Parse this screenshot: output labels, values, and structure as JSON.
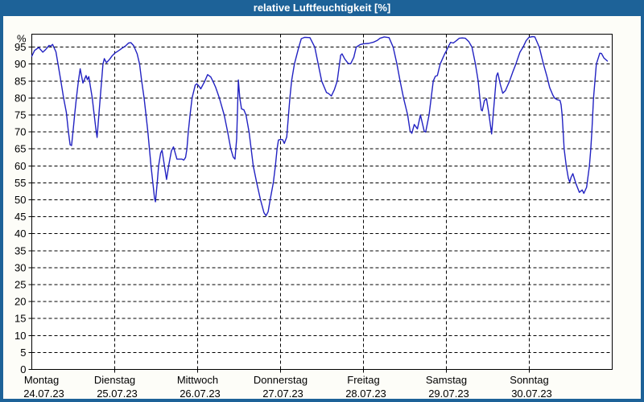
{
  "window": {
    "title": "relative Luftfeuchtigkeit [%]"
  },
  "chart_data": {
    "type": "line",
    "title": "relative Luftfeuchtigkeit [%]",
    "unit_label": "%",
    "grid": "dashed",
    "legend": "none",
    "line_color": "#2222c2",
    "plot_bg": "#ffffff",
    "ylim": [
      0,
      99
    ],
    "x_range_hours": [
      0,
      168
    ],
    "y_ticks": [
      0,
      5,
      10,
      15,
      20,
      25,
      30,
      35,
      40,
      45,
      50,
      55,
      60,
      65,
      70,
      75,
      80,
      85,
      90,
      95
    ],
    "x_days": [
      {
        "name": "Montag",
        "date": "24.07.23"
      },
      {
        "name": "Dienstag",
        "date": "25.07.23"
      },
      {
        "name": "Mittwoch",
        "date": "26.07.23"
      },
      {
        "name": "Donnerstag",
        "date": "27.07.23"
      },
      {
        "name": "Freitag",
        "date": "28.07.23"
      },
      {
        "name": "Samstag",
        "date": "29.07.23"
      },
      {
        "name": "Sonntag",
        "date": "30.07.23"
      }
    ],
    "series": [
      {
        "name": "relative Luftfeuchtigkeit [%]",
        "x_unit": "hours since 24.07.23 00:00",
        "points": [
          [
            0,
            92.3
          ],
          [
            0.8,
            94
          ],
          [
            2,
            94.9
          ],
          [
            3.2,
            93.5
          ],
          [
            4,
            94.3
          ],
          [
            5,
            95.5
          ],
          [
            5.5,
            95.3
          ],
          [
            6,
            95.8
          ],
          [
            7,
            93.6
          ],
          [
            7.6,
            90
          ],
          [
            8.4,
            85
          ],
          [
            9.2,
            80
          ],
          [
            10,
            75.8
          ],
          [
            10.6,
            70
          ],
          [
            11.1,
            66.2
          ],
          [
            11.5,
            66
          ],
          [
            12,
            70.8
          ],
          [
            12.4,
            75
          ],
          [
            12.9,
            80
          ],
          [
            13.5,
            85
          ],
          [
            14,
            88.6
          ],
          [
            14.8,
            84.4
          ],
          [
            15.7,
            86.6
          ],
          [
            16.1,
            85.4
          ],
          [
            16.5,
            86.3
          ],
          [
            17.5,
            80
          ],
          [
            18,
            75.5
          ],
          [
            18.6,
            70.5
          ],
          [
            18.9,
            68.4
          ],
          [
            19.4,
            75
          ],
          [
            20.2,
            85
          ],
          [
            20.6,
            90
          ],
          [
            21,
            91.6
          ],
          [
            21.6,
            90.4
          ],
          [
            22.5,
            91.4
          ],
          [
            23.3,
            92.5
          ],
          [
            24,
            93.2
          ],
          [
            25.2,
            94
          ],
          [
            26,
            94.6
          ],
          [
            27.2,
            95.4
          ],
          [
            28,
            96.2
          ],
          [
            28.7,
            96.3
          ],
          [
            29.5,
            95.4
          ],
          [
            30.5,
            93
          ],
          [
            31.2,
            90
          ],
          [
            31.8,
            85
          ],
          [
            32.5,
            80
          ],
          [
            33,
            75.6
          ],
          [
            33.6,
            70
          ],
          [
            34,
            65.6
          ],
          [
            34.5,
            60
          ],
          [
            35,
            55.4
          ],
          [
            35.5,
            50.6
          ],
          [
            35.8,
            49.4
          ],
          [
            36.3,
            55
          ],
          [
            36.7,
            60
          ],
          [
            37.3,
            63.8
          ],
          [
            37.7,
            64.6
          ],
          [
            38.4,
            60
          ],
          [
            39,
            56
          ],
          [
            39.6,
            60
          ],
          [
            40.4,
            64.4
          ],
          [
            41,
            65.6
          ],
          [
            42,
            62
          ],
          [
            43.4,
            62
          ],
          [
            44,
            61.7
          ],
          [
            44.5,
            62.5
          ],
          [
            44.9,
            65
          ],
          [
            45.3,
            70
          ],
          [
            45.8,
            75
          ],
          [
            46.4,
            80
          ],
          [
            47.3,
            83.8
          ],
          [
            47.8,
            84.2
          ],
          [
            48.6,
            83.2
          ],
          [
            48.9,
            82.7
          ],
          [
            50,
            84.8
          ],
          [
            50.9,
            86.9
          ],
          [
            51.8,
            86.2
          ],
          [
            52.4,
            85
          ],
          [
            53.2,
            83.2
          ],
          [
            54.3,
            80
          ],
          [
            55.7,
            75
          ],
          [
            56.7,
            70
          ],
          [
            57.6,
            65
          ],
          [
            58.3,
            62.6
          ],
          [
            58.8,
            62
          ],
          [
            59.3,
            68
          ],
          [
            59.8,
            85.3
          ],
          [
            60.2,
            80
          ],
          [
            60.7,
            76.8
          ],
          [
            61.4,
            76.5
          ],
          [
            62,
            75
          ],
          [
            62.9,
            70
          ],
          [
            63.5,
            65
          ],
          [
            64.1,
            60
          ],
          [
            65.1,
            55
          ],
          [
            66.2,
            50
          ],
          [
            67.2,
            46.2
          ],
          [
            67.8,
            45.3
          ],
          [
            68.4,
            46.5
          ],
          [
            69,
            50
          ],
          [
            69.9,
            55
          ],
          [
            70.5,
            60
          ],
          [
            71,
            65
          ],
          [
            71.4,
            67.6
          ],
          [
            72,
            67.8
          ],
          [
            72.6,
            67.7
          ],
          [
            73.1,
            66.6
          ],
          [
            73.8,
            68.5
          ],
          [
            74.3,
            75
          ],
          [
            74.7,
            80
          ],
          [
            75.2,
            85
          ],
          [
            76,
            90
          ],
          [
            77.3,
            95
          ],
          [
            78,
            97.5
          ],
          [
            79,
            97.9
          ],
          [
            80.5,
            97.8
          ],
          [
            81.9,
            95
          ],
          [
            82.9,
            90
          ],
          [
            83.9,
            85
          ],
          [
            85.3,
            81.6
          ],
          [
            85.9,
            81.3
          ],
          [
            86.7,
            80.6
          ],
          [
            87.6,
            82.5
          ],
          [
            88.4,
            85
          ],
          [
            89.4,
            92.6
          ],
          [
            89.8,
            93
          ],
          [
            90.6,
            91.5
          ],
          [
            91.6,
            90.2
          ],
          [
            92.3,
            90.1
          ],
          [
            93.2,
            92
          ],
          [
            93.9,
            95
          ],
          [
            95,
            95.7
          ],
          [
            96,
            96
          ],
          [
            97.5,
            96.1
          ],
          [
            99,
            96.5
          ],
          [
            100,
            97
          ],
          [
            100.8,
            97.6
          ],
          [
            102,
            98
          ],
          [
            103.4,
            97.8
          ],
          [
            104.6,
            95
          ],
          [
            105.7,
            90
          ],
          [
            106.6,
            85
          ],
          [
            107.6,
            80
          ],
          [
            108.8,
            75
          ],
          [
            109.5,
            70.3
          ],
          [
            110,
            69.6
          ],
          [
            110.7,
            72.2
          ],
          [
            111.6,
            70.9
          ],
          [
            112.5,
            75
          ],
          [
            113.6,
            70.2
          ],
          [
            114,
            70
          ],
          [
            115,
            75
          ],
          [
            115.6,
            80
          ],
          [
            116.2,
            85
          ],
          [
            116.8,
            86.4
          ],
          [
            117.4,
            86.6
          ],
          [
            118.2,
            90
          ],
          [
            119.5,
            93
          ],
          [
            120,
            93.9
          ],
          [
            120.5,
            95
          ],
          [
            121.2,
            96.4
          ],
          [
            122,
            96.2
          ],
          [
            123,
            97
          ],
          [
            123.7,
            97.6
          ],
          [
            124.6,
            97.7
          ],
          [
            125.5,
            97.6
          ],
          [
            126.5,
            96.6
          ],
          [
            127.4,
            95
          ],
          [
            128.4,
            90
          ],
          [
            129.2,
            85
          ],
          [
            129.7,
            80
          ],
          [
            130.1,
            76.5
          ],
          [
            130.4,
            76.2
          ],
          [
            131,
            79.2
          ],
          [
            131.6,
            79.8
          ],
          [
            132.2,
            76
          ],
          [
            132.9,
            70.8
          ],
          [
            133.1,
            69.4
          ],
          [
            133.8,
            78
          ],
          [
            134.5,
            86.5
          ],
          [
            134.9,
            87.4
          ],
          [
            135.6,
            84
          ],
          [
            136.3,
            81.4
          ],
          [
            137.1,
            82.2
          ],
          [
            138.3,
            85
          ],
          [
            139.2,
            87.6
          ],
          [
            140.1,
            90
          ],
          [
            141.3,
            93.5
          ],
          [
            142.2,
            95
          ],
          [
            143.1,
            96.9
          ],
          [
            143.9,
            97.9
          ],
          [
            145,
            98.1
          ],
          [
            145.6,
            98
          ],
          [
            146.9,
            95
          ],
          [
            148.1,
            90
          ],
          [
            149.1,
            86.4
          ],
          [
            149.9,
            83.1
          ],
          [
            150.8,
            80.9
          ],
          [
            151.3,
            80
          ],
          [
            152.1,
            79.5
          ],
          [
            152.9,
            79.3
          ],
          [
            153.2,
            78
          ],
          [
            153.5,
            75
          ],
          [
            153.8,
            70
          ],
          [
            154.1,
            65
          ],
          [
            154.7,
            60
          ],
          [
            155.3,
            56.4
          ],
          [
            155.7,
            55.2
          ],
          [
            156.1,
            56.6
          ],
          [
            156.6,
            57.7
          ],
          [
            157.5,
            54.8
          ],
          [
            158.5,
            52.2
          ],
          [
            159.3,
            52.9
          ],
          [
            159.8,
            51.9
          ],
          [
            160.6,
            53.7
          ],
          [
            161.4,
            60
          ],
          [
            161.8,
            65
          ],
          [
            162.1,
            70
          ],
          [
            162.6,
            80
          ],
          [
            163.4,
            90
          ],
          [
            164.4,
            93.2
          ],
          [
            164.9,
            93.1
          ],
          [
            165.6,
            91.8
          ],
          [
            166.6,
            90.9
          ]
        ]
      }
    ]
  }
}
